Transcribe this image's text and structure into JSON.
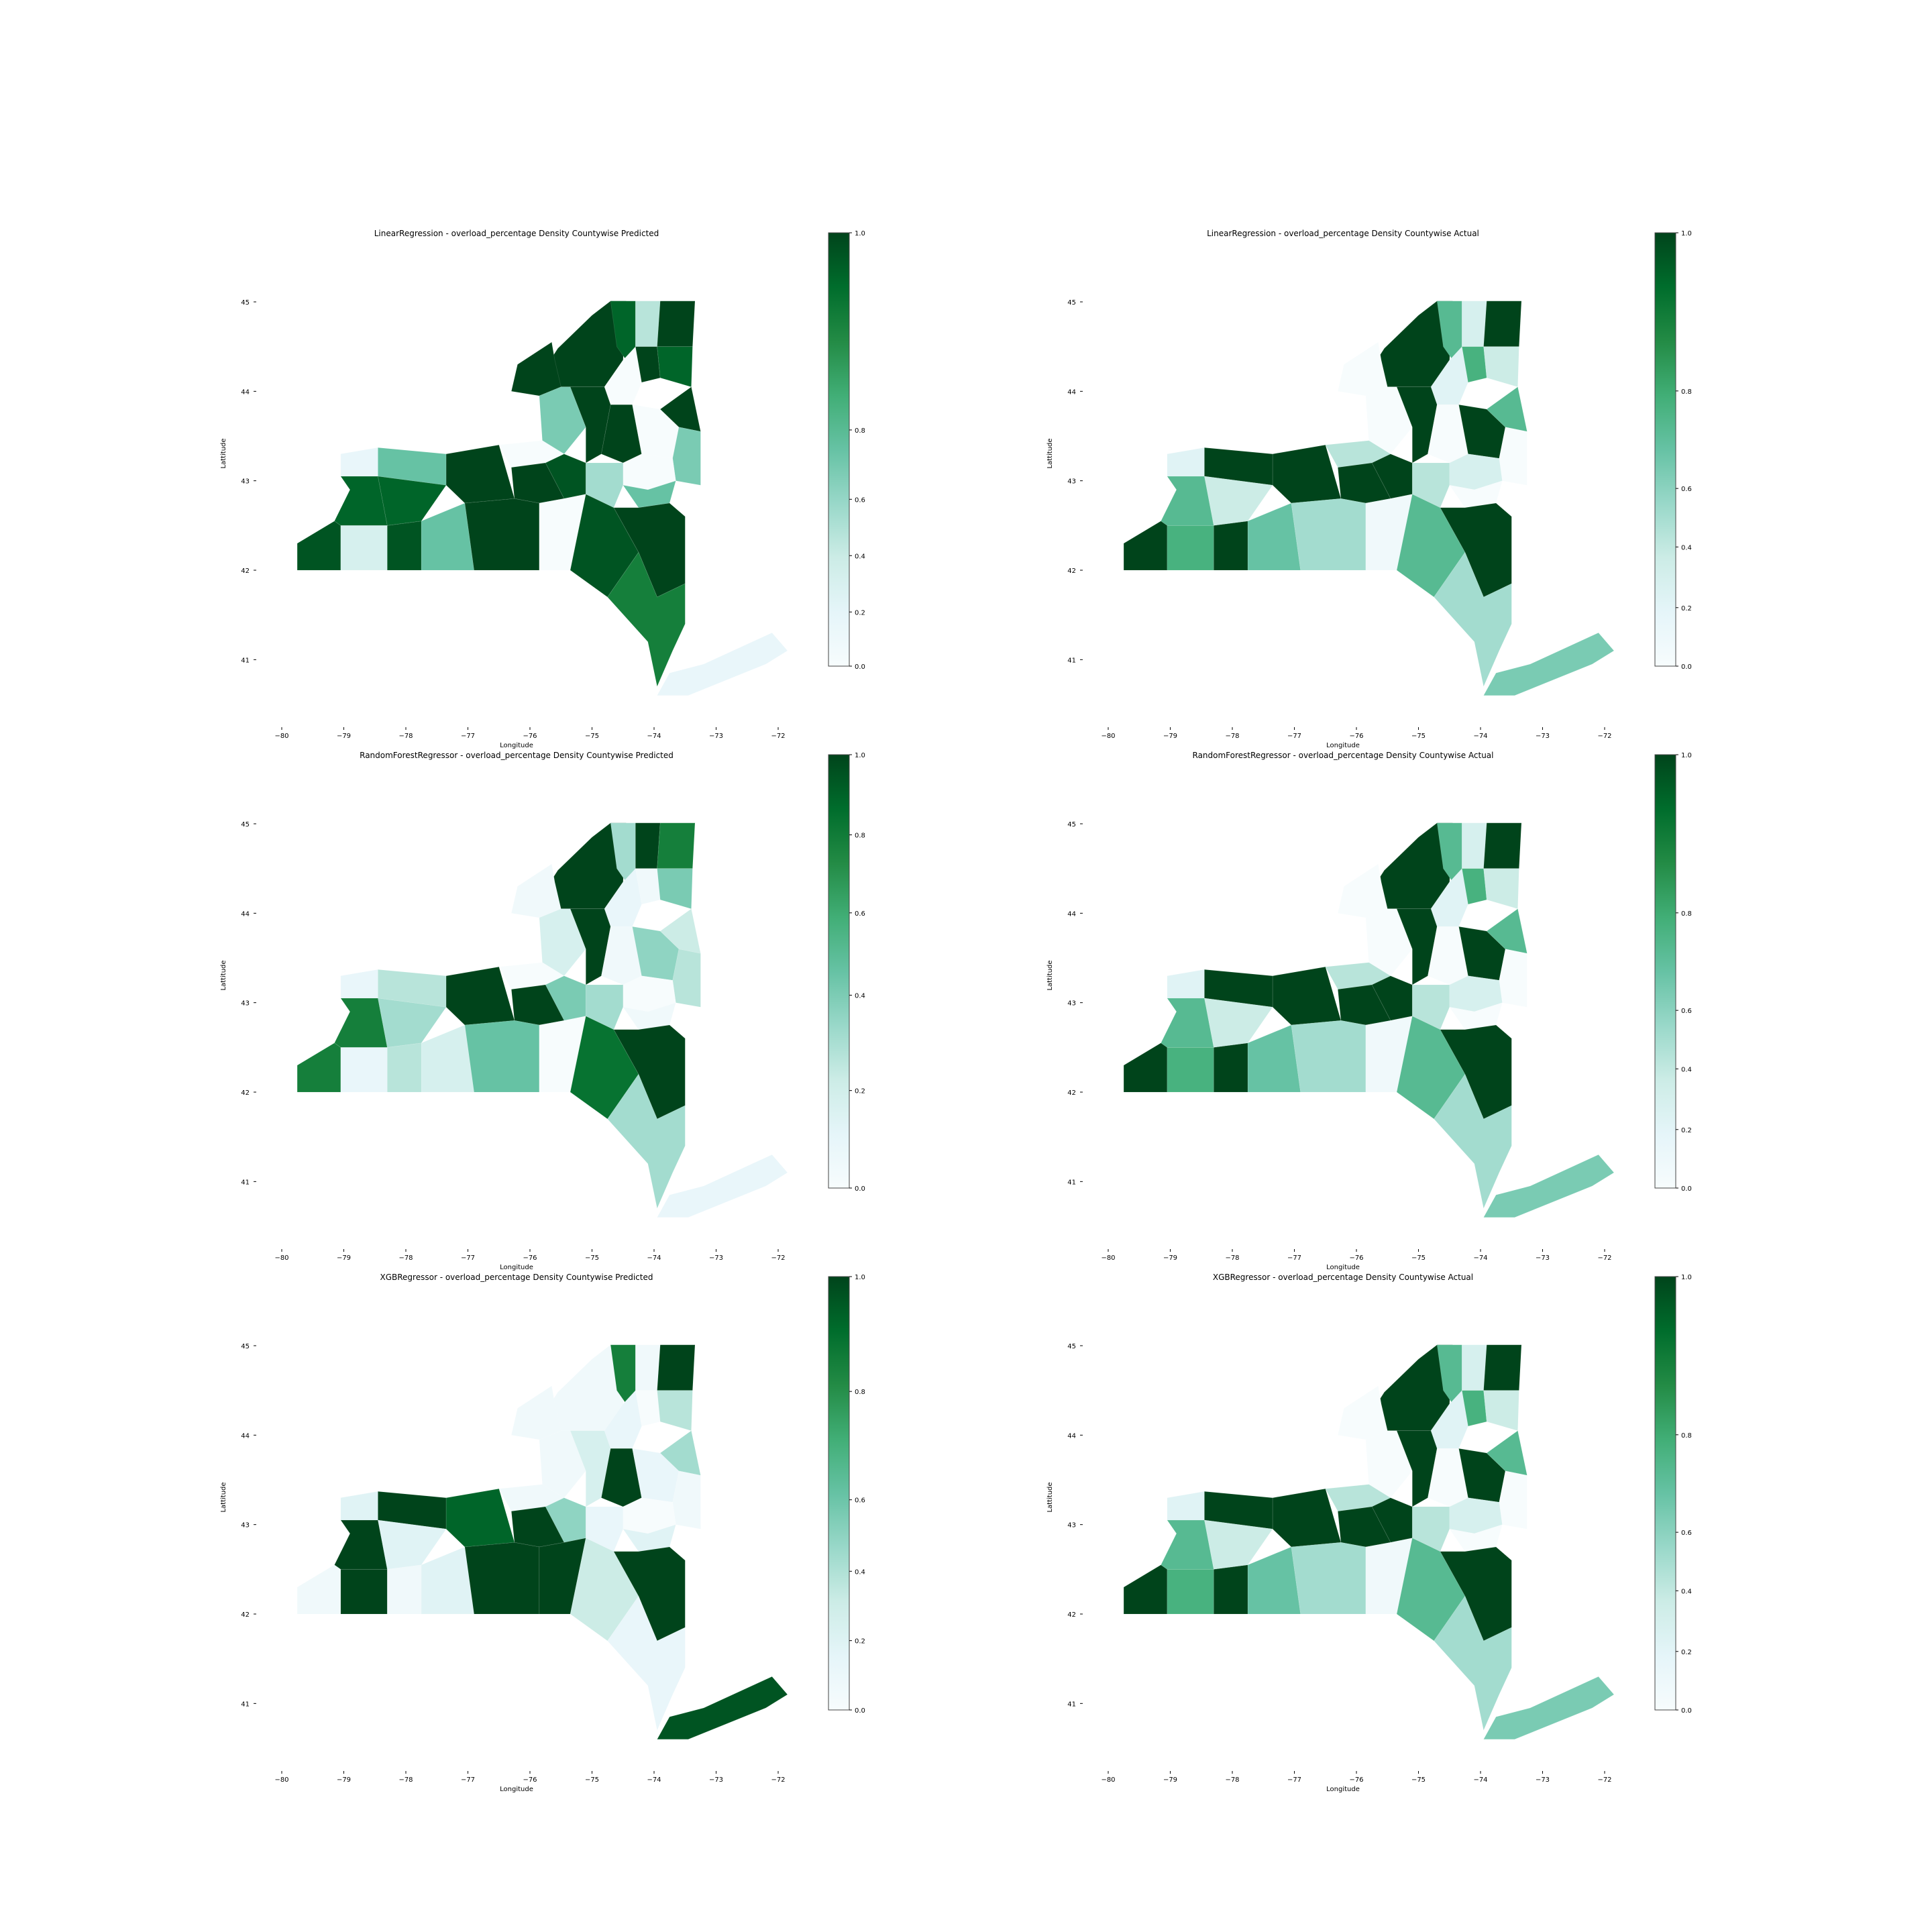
{
  "figure": {
    "panels": [
      {
        "title": "LinearRegression - overload_percentage Density Countywise Predicted",
        "xlabel": "Longitude",
        "ylabel": "Lattitude",
        "xticks": [
          "−80",
          "−79",
          "−78",
          "−77",
          "−76",
          "−75",
          "−74",
          "−73",
          "−72"
        ],
        "yticks": [
          "41",
          "42",
          "43",
          "44",
          "45"
        ],
        "colorbar": {
          "ticks": [
            "0.0",
            "0.2",
            "0.4",
            "0.6",
            "0.8",
            "1.0"
          ],
          "scale": "nonlinear",
          "positions": [
            0.0,
            0.125,
            0.255,
            0.385,
            0.545,
            1.0
          ]
        },
        "values": [
          1.0,
          0.9,
          0.3,
          1.0,
          1.0,
          0.0,
          1.0,
          0.9,
          0.45,
          1.0,
          1.0,
          0.0,
          1.0,
          0.45,
          0.0,
          0.95,
          0.0,
          1.0,
          0.35,
          0.5,
          0.95,
          0.2,
          0.95,
          0.9,
          0.1,
          0.5,
          1.0,
          0.9,
          0.5,
          1.0,
          0.0,
          0.95,
          1.0,
          0.8,
          0.1
        ]
      },
      {
        "title": "LinearRegression - overload_percentage Density Countywise Actual",
        "xlabel": "Longitude",
        "ylabel": "Lattitude",
        "xticks": [
          "−80",
          "−79",
          "−78",
          "−77",
          "−76",
          "−75",
          "−74",
          "−73",
          "−72"
        ],
        "yticks": [
          "41",
          "42",
          "43",
          "44",
          "45"
        ],
        "colorbar": {
          "ticks": [
            "0.0",
            "0.2",
            "0.4",
            "0.6",
            "0.8",
            "1.0"
          ],
          "scale": "nonlinear",
          "positions": [
            0.0,
            0.135,
            0.275,
            0.41,
            0.635,
            1.0
          ]
        },
        "values": [
          1.0,
          0.55,
          0.2,
          1.0,
          0.0,
          0.15,
          0.6,
          0.25,
          0.0,
          1.0,
          0.0,
          1.0,
          0.55,
          0.0,
          0.3,
          1.0,
          0.2,
          1.0,
          0.3,
          0.0,
          1.0,
          0.6,
          1.0,
          0.55,
          0.15,
          1.0,
          1.0,
          0.25,
          0.5,
          0.35,
          0.05,
          0.55,
          1.0,
          0.35,
          0.45
        ]
      },
      {
        "title": "RandomForestRegressor - overload_percentage Density Countywise Predicted",
        "xlabel": "Longitude",
        "ylabel": "Lattitude",
        "xticks": [
          "−80",
          "−79",
          "−78",
          "−77",
          "−76",
          "−75",
          "−74",
          "−73",
          "−72"
        ],
        "yticks": [
          "41",
          "42",
          "43",
          "44",
          "45"
        ],
        "colorbar": {
          "ticks": [
            "0.0",
            "0.2",
            "0.4",
            "0.6",
            "0.8",
            "1.0"
          ],
          "scale": "nonlinear",
          "positions": [
            0.0,
            0.225,
            0.445,
            0.635,
            0.815,
            1.0
          ]
        },
        "values": [
          1.0,
          0.35,
          1.0,
          0.8,
          0.05,
          0.1,
          0.05,
          0.45,
          0.2,
          1.0,
          0.05,
          0.4,
          0.25,
          0.3,
          0.0,
          0.45,
          0.0,
          1.0,
          0.35,
          0.05,
          0.8,
          0.1,
          0.3,
          0.8,
          0.1,
          0.3,
          1.0,
          0.35,
          0.2,
          0.5,
          0.0,
          0.85,
          1.0,
          0.35,
          0.1
        ]
      },
      {
        "title": "RandomForestRegressor - overload_percentage Density Countywise Actual",
        "xlabel": "Longitude",
        "ylabel": "Lattitude",
        "xticks": [
          "−80",
          "−79",
          "−78",
          "−77",
          "−76",
          "−75",
          "−74",
          "−73",
          "−72"
        ],
        "yticks": [
          "41",
          "42",
          "43",
          "44",
          "45"
        ],
        "colorbar": {
          "ticks": [
            "0.0",
            "0.2",
            "0.4",
            "0.6",
            "0.8",
            "1.0"
          ],
          "scale": "nonlinear",
          "positions": [
            0.0,
            0.135,
            0.275,
            0.41,
            0.635,
            1.0
          ]
        },
        "values": [
          1.0,
          0.55,
          0.2,
          1.0,
          0.0,
          0.15,
          0.6,
          0.25,
          0.0,
          1.0,
          0.0,
          1.0,
          0.55,
          0.0,
          0.3,
          1.0,
          0.2,
          1.0,
          0.3,
          0.0,
          1.0,
          0.6,
          1.0,
          0.55,
          0.15,
          1.0,
          1.0,
          0.25,
          0.5,
          0.35,
          0.05,
          0.55,
          1.0,
          0.35,
          0.45
        ]
      },
      {
        "title": "XGBRegressor - overload_percentage Density Countywise Predicted",
        "xlabel": "Longitude",
        "ylabel": "Lattitude",
        "xticks": [
          "−80",
          "−79",
          "−78",
          "−77",
          "−76",
          "−75",
          "−74",
          "−73",
          "−72"
        ],
        "yticks": [
          "41",
          "42",
          "43",
          "44",
          "45"
        ],
        "colorbar": {
          "ticks": [
            "0.0",
            "0.2",
            "0.4",
            "0.6",
            "0.8",
            "1.0"
          ],
          "scale": "nonlinear",
          "positions": [
            0.0,
            0.16,
            0.32,
            0.485,
            0.735,
            1.0
          ]
        },
        "values": [
          0.05,
          0.8,
          0.05,
          1.0,
          0.05,
          0.1,
          0.0,
          0.3,
          0.05,
          0.2,
          1.0,
          0.1,
          0.35,
          0.05,
          0.05,
          0.4,
          0.0,
          1.0,
          0.1,
          0.15,
          0.05,
          1.0,
          0.05,
          1.0,
          0.15,
          1.0,
          0.9,
          0.15,
          0.15,
          1.0,
          1.0,
          0.25,
          1.0,
          0.1,
          0.95
        ]
      },
      {
        "title": "XGBRegressor - overload_percentage Density Countywise Actual",
        "xlabel": "Longitude",
        "ylabel": "Lattitude",
        "xticks": [
          "−80",
          "−79",
          "−78",
          "−77",
          "−76",
          "−75",
          "−74",
          "−73",
          "−72"
        ],
        "yticks": [
          "41",
          "42",
          "43",
          "44",
          "45"
        ],
        "colorbar": {
          "ticks": [
            "0.0",
            "0.2",
            "0.4",
            "0.6",
            "0.8",
            "1.0"
          ],
          "scale": "nonlinear",
          "positions": [
            0.0,
            0.135,
            0.275,
            0.41,
            0.635,
            1.0
          ]
        },
        "values": [
          1.0,
          0.55,
          0.2,
          1.0,
          0.0,
          0.15,
          0.6,
          0.25,
          0.0,
          1.0,
          0.0,
          1.0,
          0.55,
          0.0,
          0.3,
          1.0,
          0.2,
          1.0,
          0.3,
          0.0,
          1.0,
          0.6,
          1.0,
          0.55,
          0.15,
          1.0,
          1.0,
          0.25,
          0.5,
          0.35,
          0.05,
          0.55,
          1.0,
          0.35,
          0.45
        ]
      }
    ],
    "colormap": [
      "#f7fcfd",
      "#e5f5f9",
      "#ccece6",
      "#99d8c9",
      "#66c2a4",
      "#41ae76",
      "#238b45",
      "#006d2c",
      "#00441b"
    ]
  }
}
